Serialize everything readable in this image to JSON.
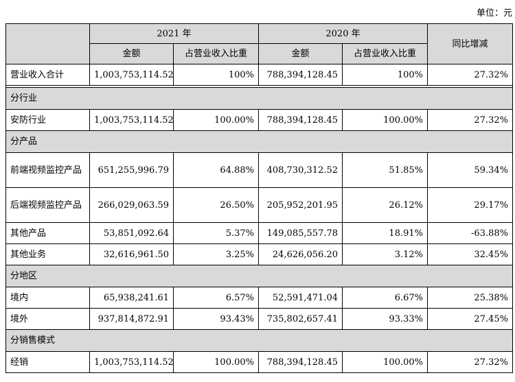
{
  "unit_label": "单位：元",
  "header": {
    "year_2021": "2021 年",
    "year_2020": "2020 年",
    "yoy": "同比增减",
    "amount_2021": "金额",
    "ratio_2021": "占营业收入比重",
    "amount_2020": "金额",
    "ratio_2020": "占营业收入比重"
  },
  "total_row": {
    "label": "营业收入合计",
    "amount_2021": "1,003,753,114.52",
    "ratio_2021": "100%",
    "amount_2020": "788,394,128.45",
    "ratio_2020": "100%",
    "yoy": "27.32%"
  },
  "sections": {
    "industry": "分行业",
    "product": "分产品",
    "region": "分地区",
    "sales": "分销售模式"
  },
  "industry_rows": [
    {
      "label": "安防行业",
      "amount_2021": "1,003,753,114.52",
      "ratio_2021": "100.00%",
      "amount_2020": "788,394,128.45",
      "ratio_2020": "100.00%",
      "yoy": "27.32%"
    }
  ],
  "product_rows": [
    {
      "label": "前端视频监控产品",
      "amount_2021": "651,255,996.79",
      "ratio_2021": "64.88%",
      "amount_2020": "408,730,312.52",
      "ratio_2020": "51.85%",
      "yoy": "59.34%"
    },
    {
      "label": "后端视频监控产品",
      "amount_2021": "266,029,063.59",
      "ratio_2021": "26.50%",
      "amount_2020": "205,952,201.95",
      "ratio_2020": "26.12%",
      "yoy": "29.17%"
    },
    {
      "label": "其他产品",
      "amount_2021": "53,851,092.64",
      "ratio_2021": "5.37%",
      "amount_2020": "149,085,557.78",
      "ratio_2020": "18.91%",
      "yoy": "-63.88%"
    },
    {
      "label": "其他业务",
      "amount_2021": "32,616,961.50",
      "ratio_2021": "3.25%",
      "amount_2020": "24,626,056.20",
      "ratio_2020": "3.12%",
      "yoy": "32.45%"
    }
  ],
  "region_rows": [
    {
      "label": "境内",
      "amount_2021": "65,938,241.61",
      "ratio_2021": "6.57%",
      "amount_2020": "52,591,471.04",
      "ratio_2020": "6.67%",
      "yoy": "25.38%"
    },
    {
      "label": "境外",
      "amount_2021": "937,814,872.91",
      "ratio_2021": "93.43%",
      "amount_2020": "735,802,657.41",
      "ratio_2020": "93.33%",
      "yoy": "27.45%"
    }
  ],
  "sales_rows": [
    {
      "label": "经销",
      "amount_2021": "1,003,753,114.52",
      "ratio_2021": "100.00%",
      "amount_2020": "788,394,128.45",
      "ratio_2020": "100.00%",
      "yoy": "27.32%"
    }
  ]
}
